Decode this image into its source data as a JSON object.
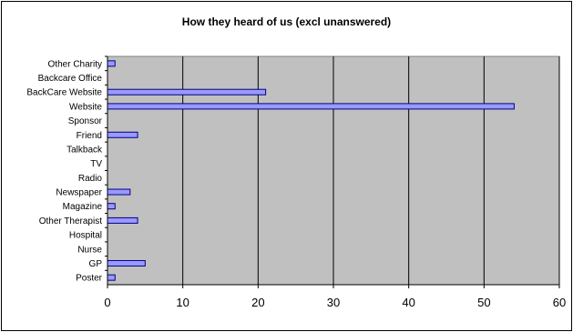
{
  "chart_data": {
    "type": "bar",
    "orientation": "horizontal",
    "title": "How they heard of us (excl unanswered)",
    "xlabel": "",
    "ylabel": "",
    "categories": [
      "Other Charity",
      "Backcare Office",
      "BackCare Website",
      "Website",
      "Sponsor",
      "Friend",
      "Talkback",
      "TV",
      "Radio",
      "Newspaper",
      "Magazine",
      "Other Therapist",
      "Hospital",
      "Nurse",
      "GP",
      "Poster"
    ],
    "values": [
      1,
      0,
      21,
      54,
      0,
      4,
      0,
      0,
      0,
      3,
      1,
      4,
      0,
      0,
      5,
      1
    ],
    "xlim": [
      0,
      60
    ],
    "xticks": [
      "0",
      "10",
      "20",
      "30",
      "40",
      "50",
      "60"
    ],
    "grid": true,
    "legend": "none",
    "colors": {
      "plot_background": "#c0c0c0",
      "bar_fill": "#9999ff",
      "bar_stroke": "#000080",
      "gridline": "#000000"
    }
  }
}
